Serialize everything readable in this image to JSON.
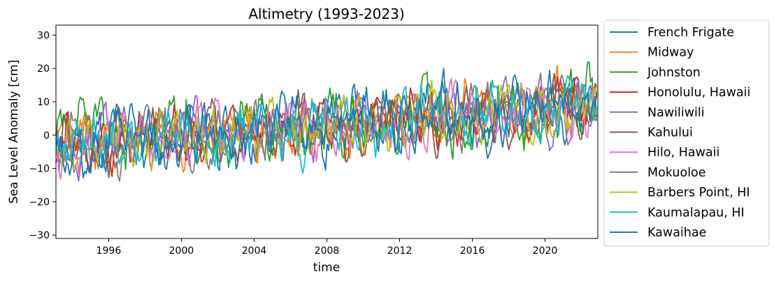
{
  "chart_data": {
    "type": "line",
    "title": "Altimetry (1993-2023)",
    "xlabel": "time",
    "ylabel": "Sea Level Anomaly [cm]",
    "xlim": [
      1993.1,
      2022.9
    ],
    "ylim": [
      -31,
      33
    ],
    "xticks": [
      1996,
      2000,
      2004,
      2008,
      2012,
      2016,
      2020
    ],
    "xtick_labels": [
      "1996",
      "2000",
      "2004",
      "2008",
      "2012",
      "2016",
      "2020"
    ],
    "yticks": [
      -30,
      -20,
      -10,
      0,
      10,
      20,
      30
    ],
    "ytick_labels": [
      "−30",
      "−20",
      "−10",
      "0",
      "10",
      "20",
      "30"
    ],
    "grid": false,
    "legend_position": "outside-right",
    "x_start": 1993.1,
    "x_step_years": 0.0833,
    "samples": 358,
    "series": [
      {
        "name": "French Frigate",
        "color": "#1f77b4",
        "amplitude": 7,
        "trend": 0.14,
        "seed": 11
      },
      {
        "name": "Midway",
        "color": "#ff7f0e",
        "amplitude": 7,
        "trend": 0.16,
        "seed": 23
      },
      {
        "name": "Johnston",
        "color": "#2ca02c",
        "amplitude": 9,
        "trend": 0.1,
        "seed": 37
      },
      {
        "name": "Honolulu, Hawaii",
        "color": "#d62728",
        "amplitude": 6,
        "trend": 0.12,
        "seed": 41
      },
      {
        "name": "Nawiliwili",
        "color": "#9467bd",
        "amplitude": 6,
        "trend": 0.12,
        "seed": 53
      },
      {
        "name": "Kahului",
        "color": "#8c564b",
        "amplitude": 6,
        "trend": 0.12,
        "seed": 67
      },
      {
        "name": "Hilo, Hawaii",
        "color": "#e377c2",
        "amplitude": 6,
        "trend": 0.12,
        "seed": 71
      },
      {
        "name": "Mokuoloe",
        "color": "#7f7f7f",
        "amplitude": 6,
        "trend": 0.12,
        "seed": 83
      },
      {
        "name": "Barbers Point, HI",
        "color": "#bcbd22",
        "amplitude": 6.5,
        "trend": 0.12,
        "seed": 97
      },
      {
        "name": "Kaumalapau, HI",
        "color": "#17becf",
        "amplitude": 6.5,
        "trend": 0.14,
        "seed": 101
      },
      {
        "name": "Kawaihae",
        "color": "#1f77b4",
        "amplitude": 7,
        "trend": 0.15,
        "seed": 113
      }
    ]
  }
}
